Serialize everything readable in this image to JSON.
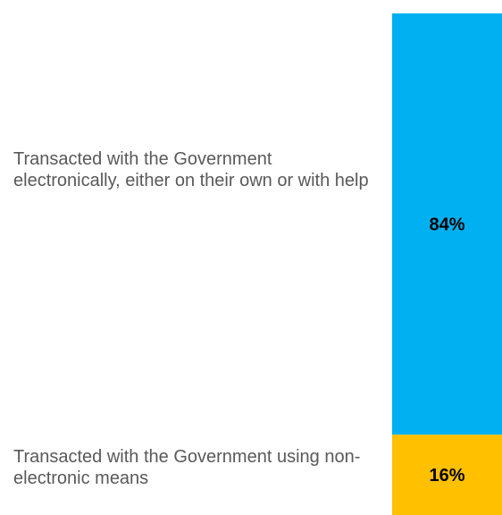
{
  "chart_data": {
    "type": "bar",
    "stacked": true,
    "orientation": "vertical",
    "categories": [
      "Transacted with the Government electronically, either on their own or with help",
      "Transacted with the Government using non-electronic means"
    ],
    "values": [
      84,
      16
    ],
    "data_labels": [
      "84%",
      "16%"
    ],
    "colors": [
      "#00b0f0",
      "#ffc000"
    ],
    "ylim": [
      0,
      100
    ],
    "grid": false,
    "legend": "none"
  }
}
